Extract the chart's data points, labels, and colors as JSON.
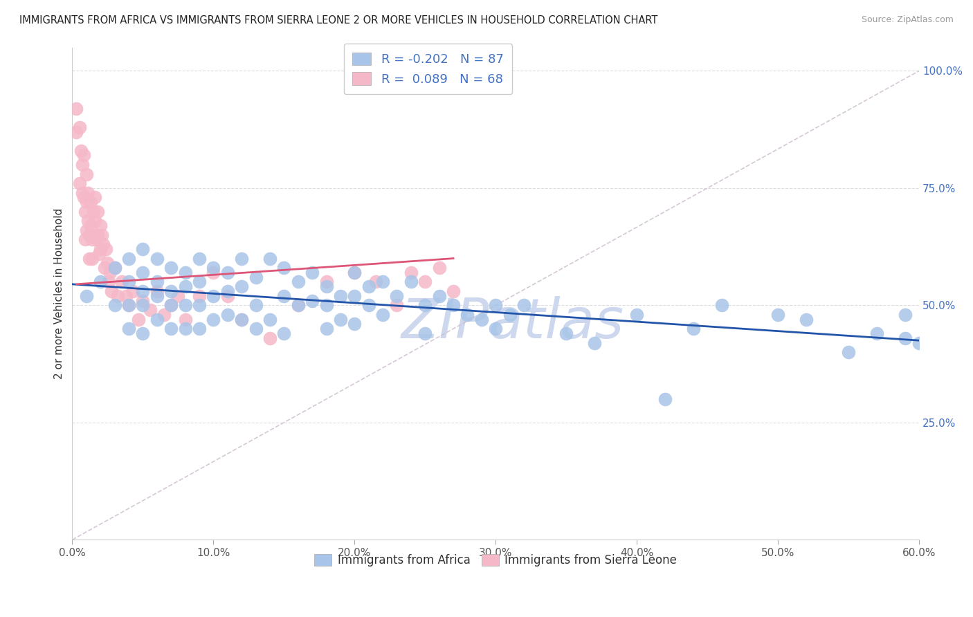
{
  "title": "IMMIGRANTS FROM AFRICA VS IMMIGRANTS FROM SIERRA LEONE 2 OR MORE VEHICLES IN HOUSEHOLD CORRELATION CHART",
  "source": "Source: ZipAtlas.com",
  "ylabel": "2 or more Vehicles in Household",
  "xlim": [
    0.0,
    0.6
  ],
  "ylim": [
    0.0,
    1.05
  ],
  "xticks": [
    0.0,
    0.1,
    0.2,
    0.3,
    0.4,
    0.5,
    0.6
  ],
  "xticklabels": [
    "0.0%",
    "10.0%",
    "20.0%",
    "30.0%",
    "40.0%",
    "50.0%",
    "60.0%"
  ],
  "yticks": [
    0.25,
    0.5,
    0.75,
    1.0
  ],
  "yticklabels": [
    "25.0%",
    "50.0%",
    "75.0%",
    "100.0%"
  ],
  "legend_R1": "-0.202",
  "legend_N1": "87",
  "legend_R2": "0.089",
  "legend_N2": "68",
  "blue_color": "#A8C4E8",
  "pink_color": "#F5B8C8",
  "blue_line_color": "#2255AA",
  "pink_line_color": "#DD5577",
  "diag_color": "#CCBBCC",
  "watermark": "ZIPatlas",
  "watermark_color": "#CDD8EE",
  "background_color": "#FFFFFF",
  "grid_color": "#DDDDDD",
  "africa_x": [
    0.01,
    0.02,
    0.03,
    0.03,
    0.04,
    0.04,
    0.04,
    0.04,
    0.05,
    0.05,
    0.05,
    0.05,
    0.05,
    0.06,
    0.06,
    0.06,
    0.06,
    0.07,
    0.07,
    0.07,
    0.07,
    0.08,
    0.08,
    0.08,
    0.08,
    0.09,
    0.09,
    0.09,
    0.09,
    0.1,
    0.1,
    0.1,
    0.11,
    0.11,
    0.11,
    0.12,
    0.12,
    0.12,
    0.13,
    0.13,
    0.13,
    0.14,
    0.14,
    0.15,
    0.15,
    0.15,
    0.16,
    0.16,
    0.17,
    0.17,
    0.18,
    0.18,
    0.18,
    0.19,
    0.19,
    0.2,
    0.2,
    0.2,
    0.21,
    0.21,
    0.22,
    0.22,
    0.23,
    0.24,
    0.25,
    0.25,
    0.26,
    0.27,
    0.28,
    0.29,
    0.3,
    0.3,
    0.31,
    0.32,
    0.35,
    0.37,
    0.4,
    0.42,
    0.44,
    0.46,
    0.5,
    0.52,
    0.55,
    0.57,
    0.59,
    0.59,
    0.6
  ],
  "africa_y": [
    0.52,
    0.55,
    0.58,
    0.5,
    0.6,
    0.55,
    0.5,
    0.45,
    0.62,
    0.57,
    0.53,
    0.5,
    0.44,
    0.6,
    0.55,
    0.52,
    0.47,
    0.58,
    0.53,
    0.5,
    0.45,
    0.57,
    0.54,
    0.5,
    0.45,
    0.6,
    0.55,
    0.5,
    0.45,
    0.58,
    0.52,
    0.47,
    0.57,
    0.53,
    0.48,
    0.6,
    0.54,
    0.47,
    0.56,
    0.5,
    0.45,
    0.6,
    0.47,
    0.58,
    0.52,
    0.44,
    0.55,
    0.5,
    0.57,
    0.51,
    0.54,
    0.5,
    0.45,
    0.52,
    0.47,
    0.57,
    0.52,
    0.46,
    0.54,
    0.5,
    0.55,
    0.48,
    0.52,
    0.55,
    0.5,
    0.44,
    0.52,
    0.5,
    0.48,
    0.47,
    0.45,
    0.5,
    0.48,
    0.5,
    0.44,
    0.42,
    0.48,
    0.3,
    0.45,
    0.5,
    0.48,
    0.47,
    0.4,
    0.44,
    0.43,
    0.48,
    0.42
  ],
  "sierra_x": [
    0.003,
    0.003,
    0.005,
    0.005,
    0.006,
    0.007,
    0.007,
    0.008,
    0.008,
    0.009,
    0.009,
    0.01,
    0.01,
    0.01,
    0.011,
    0.011,
    0.012,
    0.012,
    0.013,
    0.013,
    0.014,
    0.014,
    0.015,
    0.015,
    0.016,
    0.016,
    0.017,
    0.018,
    0.018,
    0.019,
    0.02,
    0.02,
    0.021,
    0.022,
    0.023,
    0.024,
    0.025,
    0.026,
    0.027,
    0.028,
    0.03,
    0.032,
    0.035,
    0.038,
    0.04,
    0.043,
    0.047,
    0.05,
    0.055,
    0.06,
    0.065,
    0.07,
    0.075,
    0.08,
    0.09,
    0.1,
    0.11,
    0.12,
    0.14,
    0.16,
    0.18,
    0.2,
    0.215,
    0.23,
    0.24,
    0.25,
    0.26,
    0.27
  ],
  "sierra_y": [
    0.92,
    0.87,
    0.88,
    0.76,
    0.83,
    0.8,
    0.74,
    0.82,
    0.73,
    0.7,
    0.64,
    0.78,
    0.72,
    0.66,
    0.74,
    0.68,
    0.65,
    0.6,
    0.72,
    0.67,
    0.64,
    0.6,
    0.7,
    0.65,
    0.73,
    0.68,
    0.64,
    0.7,
    0.65,
    0.61,
    0.67,
    0.62,
    0.65,
    0.63,
    0.58,
    0.62,
    0.59,
    0.55,
    0.57,
    0.53,
    0.58,
    0.52,
    0.55,
    0.52,
    0.5,
    0.53,
    0.47,
    0.51,
    0.49,
    0.53,
    0.48,
    0.5,
    0.52,
    0.47,
    0.52,
    0.57,
    0.52,
    0.47,
    0.43,
    0.5,
    0.55,
    0.57,
    0.55,
    0.5,
    0.57,
    0.55,
    0.58,
    0.53
  ],
  "blue_trend": [
    0.545,
    0.425
  ],
  "pink_trend_x": [
    0.003,
    0.27
  ],
  "pink_trend_y": [
    0.545,
    0.6
  ]
}
